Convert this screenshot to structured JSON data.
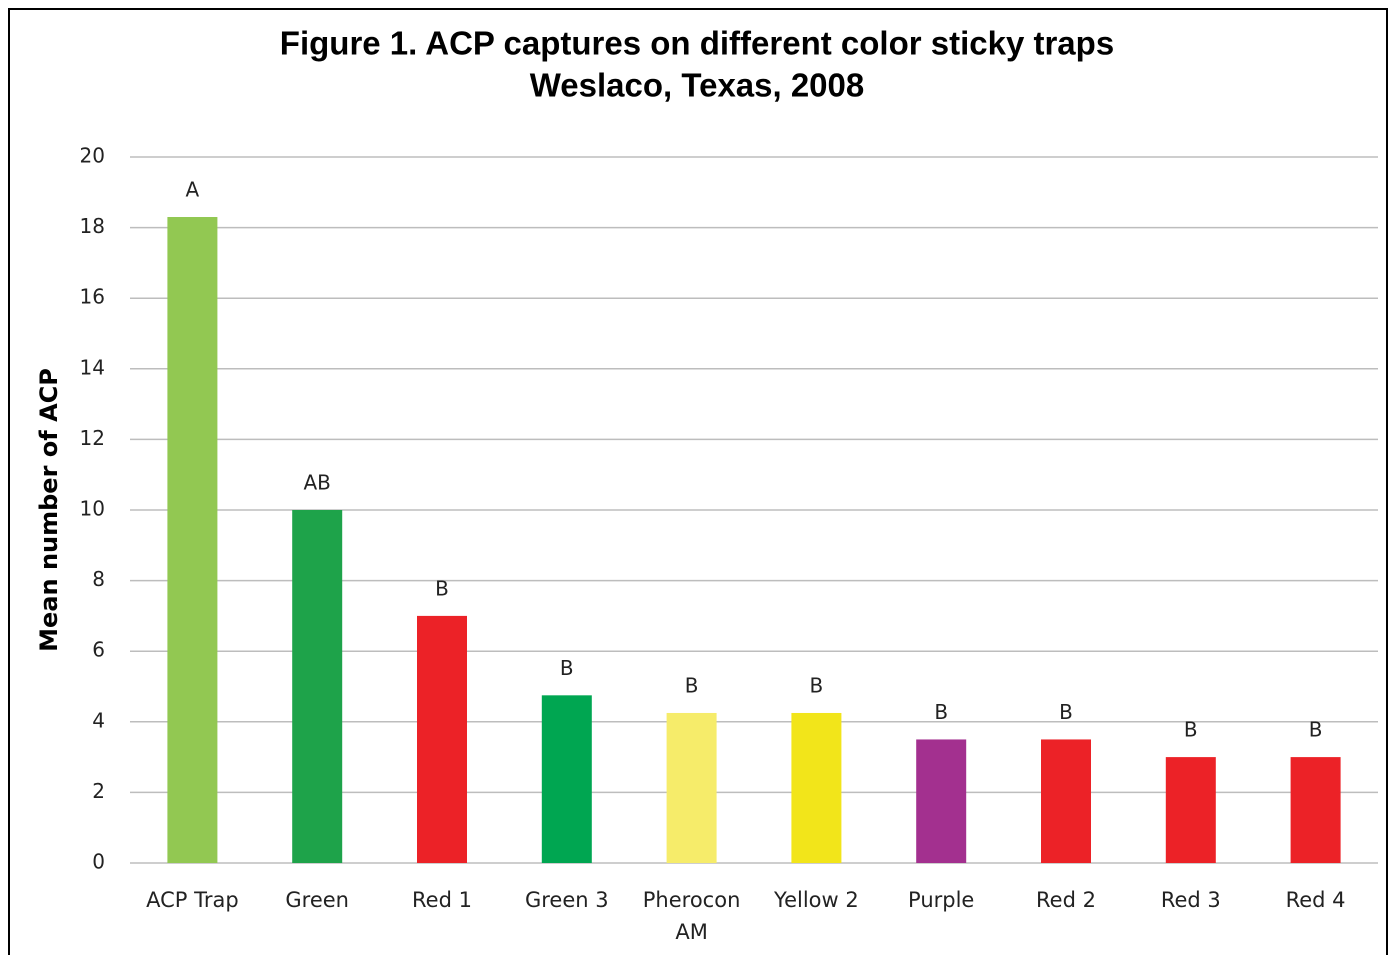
{
  "chart_data": {
    "type": "bar",
    "title": "Figure 1. ACP captures on different color sticky traps",
    "subtitle": "Weslaco, Texas, 2008",
    "y_label": "Mean number of ACP",
    "categories": [
      "ACP Trap",
      "Green",
      "Red 1",
      "Green 3",
      "Pherocon AM",
      "Yellow 2",
      "Purple",
      "Red 2",
      "Red 3",
      "Red 4"
    ],
    "values": [
      18.3,
      10,
      7,
      4.75,
      4.25,
      4.25,
      3.5,
      3.5,
      3,
      3
    ],
    "colors": [
      "#92c852",
      "#1ea34a",
      "#ec2227",
      "#00a651",
      "#f6ec6a",
      "#f2e51a",
      "#a3308f",
      "#ec2227",
      "#ec2227",
      "#ec2227"
    ],
    "annotations": [
      "A",
      "AB",
      "B",
      "B",
      "B",
      "B",
      "B",
      "B",
      "B",
      "B"
    ],
    "ylim": [
      0,
      20
    ],
    "yticks": [
      0,
      2,
      4,
      6,
      8,
      10,
      12,
      14,
      16,
      18,
      20
    ],
    "grid": true
  }
}
